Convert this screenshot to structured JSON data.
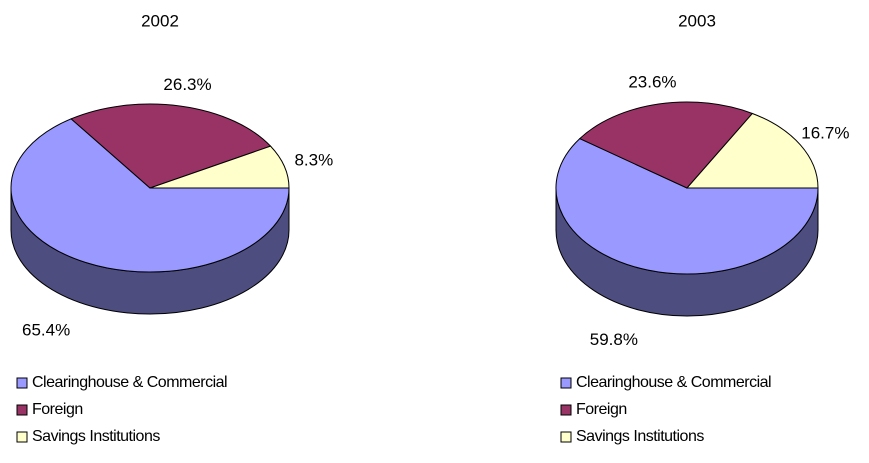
{
  "chart_data": [
    {
      "type": "pie",
      "title": "2002",
      "categories": [
        "Clearinghouse & Commercial",
        "Foreign",
        "Savings Institutions"
      ],
      "values": [
        65.4,
        26.3,
        8.3
      ],
      "value_labels": [
        "65.4%",
        "26.3%",
        "8.3%"
      ],
      "colors": [
        "#9999ff",
        "#993366",
        "#ffffcc"
      ]
    },
    {
      "type": "pie",
      "title": "2003",
      "categories": [
        "Clearinghouse & Commercial",
        "Foreign",
        "Savings Institutions"
      ],
      "values": [
        59.8,
        23.6,
        16.7
      ],
      "value_labels": [
        "59.8%",
        "23.6%",
        "16.7%"
      ],
      "colors": [
        "#9999ff",
        "#993366",
        "#ffffcc"
      ]
    }
  ]
}
